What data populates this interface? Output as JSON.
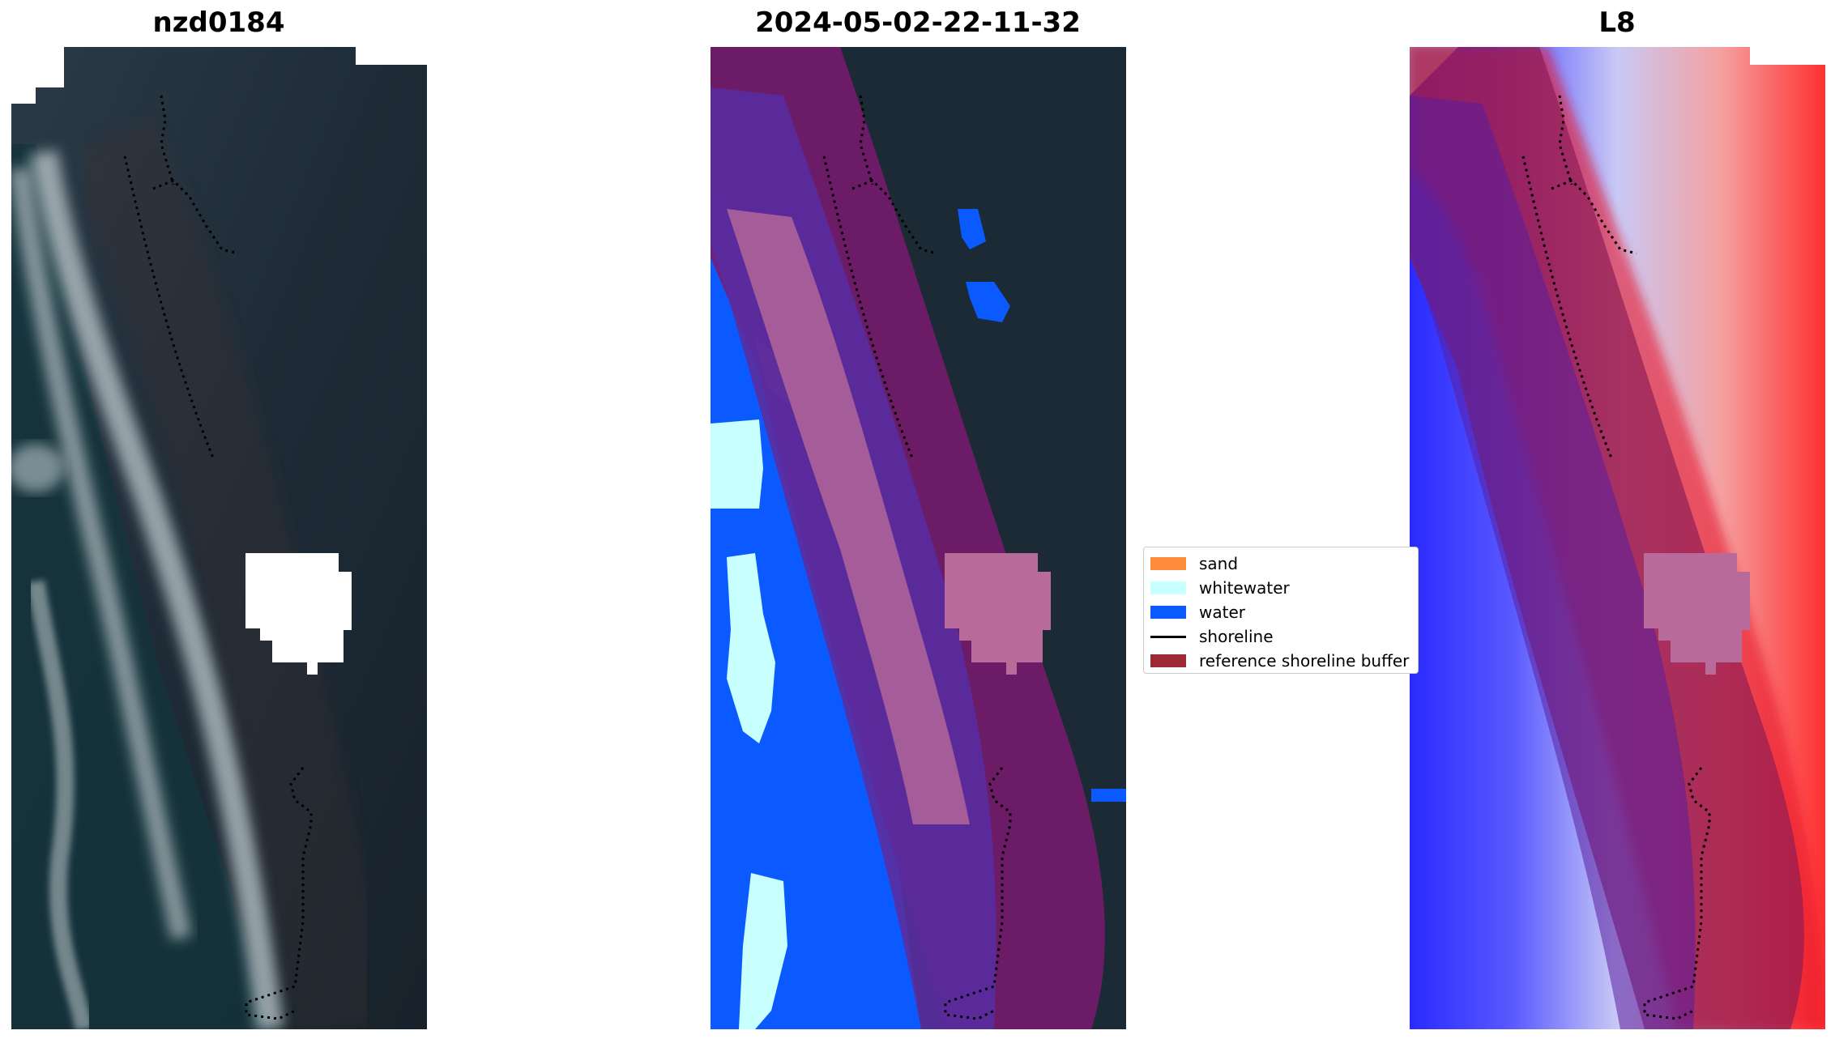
{
  "panels": [
    {
      "title": "nzd0184"
    },
    {
      "title": "2024-05-02-22-11-32"
    },
    {
      "title": "L8"
    }
  ],
  "legend": [
    {
      "label": "sand",
      "color": "#ff8c3a",
      "icon": "sand-swatch"
    },
    {
      "label": "whitewater",
      "color": "#c8ffff",
      "icon": "whitewater-swatch"
    },
    {
      "label": "water",
      "color": "#0a5aff",
      "icon": "water-swatch"
    },
    {
      "label": "shoreline",
      "color": "#000000",
      "icon": "shoreline-line"
    },
    {
      "label": "reference shoreline buffer",
      "color": "#9b2a35",
      "icon": "buffer-swatch"
    }
  ],
  "colors": {
    "land_dark": "#1c2a35",
    "water_class": "#0a5aff",
    "whitewater_class": "#c8ffff",
    "buffer_overlay": "#8b1a55",
    "index_positive": "#e8192c",
    "index_negative": "#2a2aff"
  }
}
